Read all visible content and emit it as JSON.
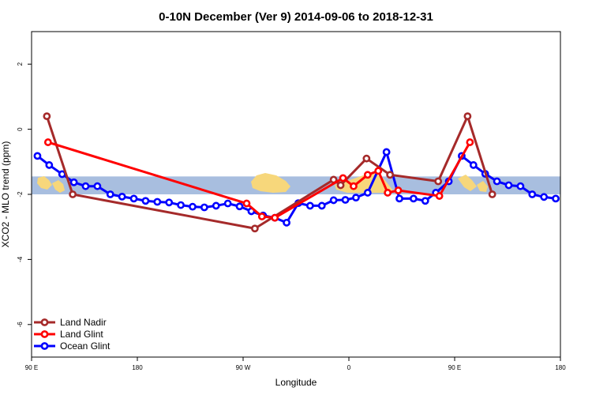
{
  "chart_data": {
    "type": "line",
    "title": "0-10N December (Ver 9)   2014-09-06 to 2018-12-31",
    "xlabel": "Longitude",
    "ylabel": "XCO2 - MLO trend (ppm)",
    "xlim": [
      90,
      540
    ],
    "ylim": [
      -7,
      3
    ],
    "x_ticks": [
      {
        "value": 90,
        "label": "90 E"
      },
      {
        "value": 180,
        "label": "180"
      },
      {
        "value": 270,
        "label": "90 W"
      },
      {
        "value": 360,
        "label": "0"
      },
      {
        "value": 450,
        "label": "90 E"
      },
      {
        "value": 540,
        "label": "180"
      }
    ],
    "y_ticks": [
      {
        "value": 2,
        "label": "2"
      },
      {
        "value": 0,
        "label": "0"
      },
      {
        "value": -2,
        "label": "-2"
      },
      {
        "value": -4,
        "label": "-4"
      },
      {
        "value": -6,
        "label": "-6"
      }
    ],
    "band": {
      "ymin": -2.0,
      "ymax": -1.45,
      "color": "#a8bedf"
    },
    "land_color": "#f7d77b",
    "legend_position": "bottom-left",
    "series": [
      {
        "name": "Land Nadir",
        "color": "#a52a2a",
        "points": [
          [
            103,
            0.4
          ],
          [
            125,
            -2.0
          ],
          [
            280,
            -3.05
          ],
          [
            347,
            -1.55
          ],
          [
            353,
            -1.72
          ],
          [
            375,
            -0.9
          ],
          [
            395,
            -1.4
          ],
          [
            436,
            -1.6
          ],
          [
            461,
            0.4
          ],
          [
            482,
            -2.0
          ]
        ]
      },
      {
        "name": "Land Glint",
        "color": "#ff0000",
        "points": [
          [
            104,
            -0.4
          ],
          [
            273,
            -2.28
          ],
          [
            286,
            -2.68
          ],
          [
            297,
            -2.72
          ],
          [
            355,
            -1.5
          ],
          [
            364,
            -1.75
          ],
          [
            376,
            -1.4
          ],
          [
            385,
            -1.28
          ],
          [
            393,
            -1.95
          ],
          [
            402,
            -1.88
          ],
          [
            437,
            -2.05
          ],
          [
            463,
            -0.4
          ]
        ]
      },
      {
        "name": "Ocean Glint",
        "color": "#0000ff",
        "points": [
          [
            95,
            -0.82
          ],
          [
            105,
            -1.1
          ],
          [
            116,
            -1.38
          ],
          [
            126,
            -1.63
          ],
          [
            136,
            -1.75
          ],
          [
            146,
            -1.75
          ],
          [
            157,
            -2.0
          ],
          [
            167,
            -2.07
          ],
          [
            177,
            -2.13
          ],
          [
            187,
            -2.2
          ],
          [
            197,
            -2.23
          ],
          [
            207,
            -2.25
          ],
          [
            217,
            -2.33
          ],
          [
            227,
            -2.38
          ],
          [
            237,
            -2.4
          ],
          [
            247,
            -2.35
          ],
          [
            257,
            -2.28
          ],
          [
            267,
            -2.37
          ],
          [
            277,
            -2.52
          ],
          [
            287,
            -2.65
          ],
          [
            297,
            -2.72
          ],
          [
            307,
            -2.87
          ],
          [
            317,
            -2.27
          ],
          [
            327,
            -2.35
          ],
          [
            337,
            -2.35
          ],
          [
            347,
            -2.18
          ],
          [
            357,
            -2.17
          ],
          [
            366,
            -2.1
          ],
          [
            376,
            -1.95
          ],
          [
            392,
            -0.7
          ],
          [
            403,
            -2.13
          ],
          [
            415,
            -2.13
          ],
          [
            425,
            -2.2
          ],
          [
            434,
            -1.95
          ],
          [
            445,
            -1.6
          ],
          [
            456,
            -0.82
          ],
          [
            466,
            -1.1
          ],
          [
            476,
            -1.37
          ],
          [
            486,
            -1.6
          ],
          [
            496,
            -1.72
          ],
          [
            506,
            -1.75
          ],
          [
            516,
            -2.0
          ],
          [
            526,
            -2.08
          ],
          [
            536,
            -2.13
          ]
        ]
      }
    ]
  }
}
